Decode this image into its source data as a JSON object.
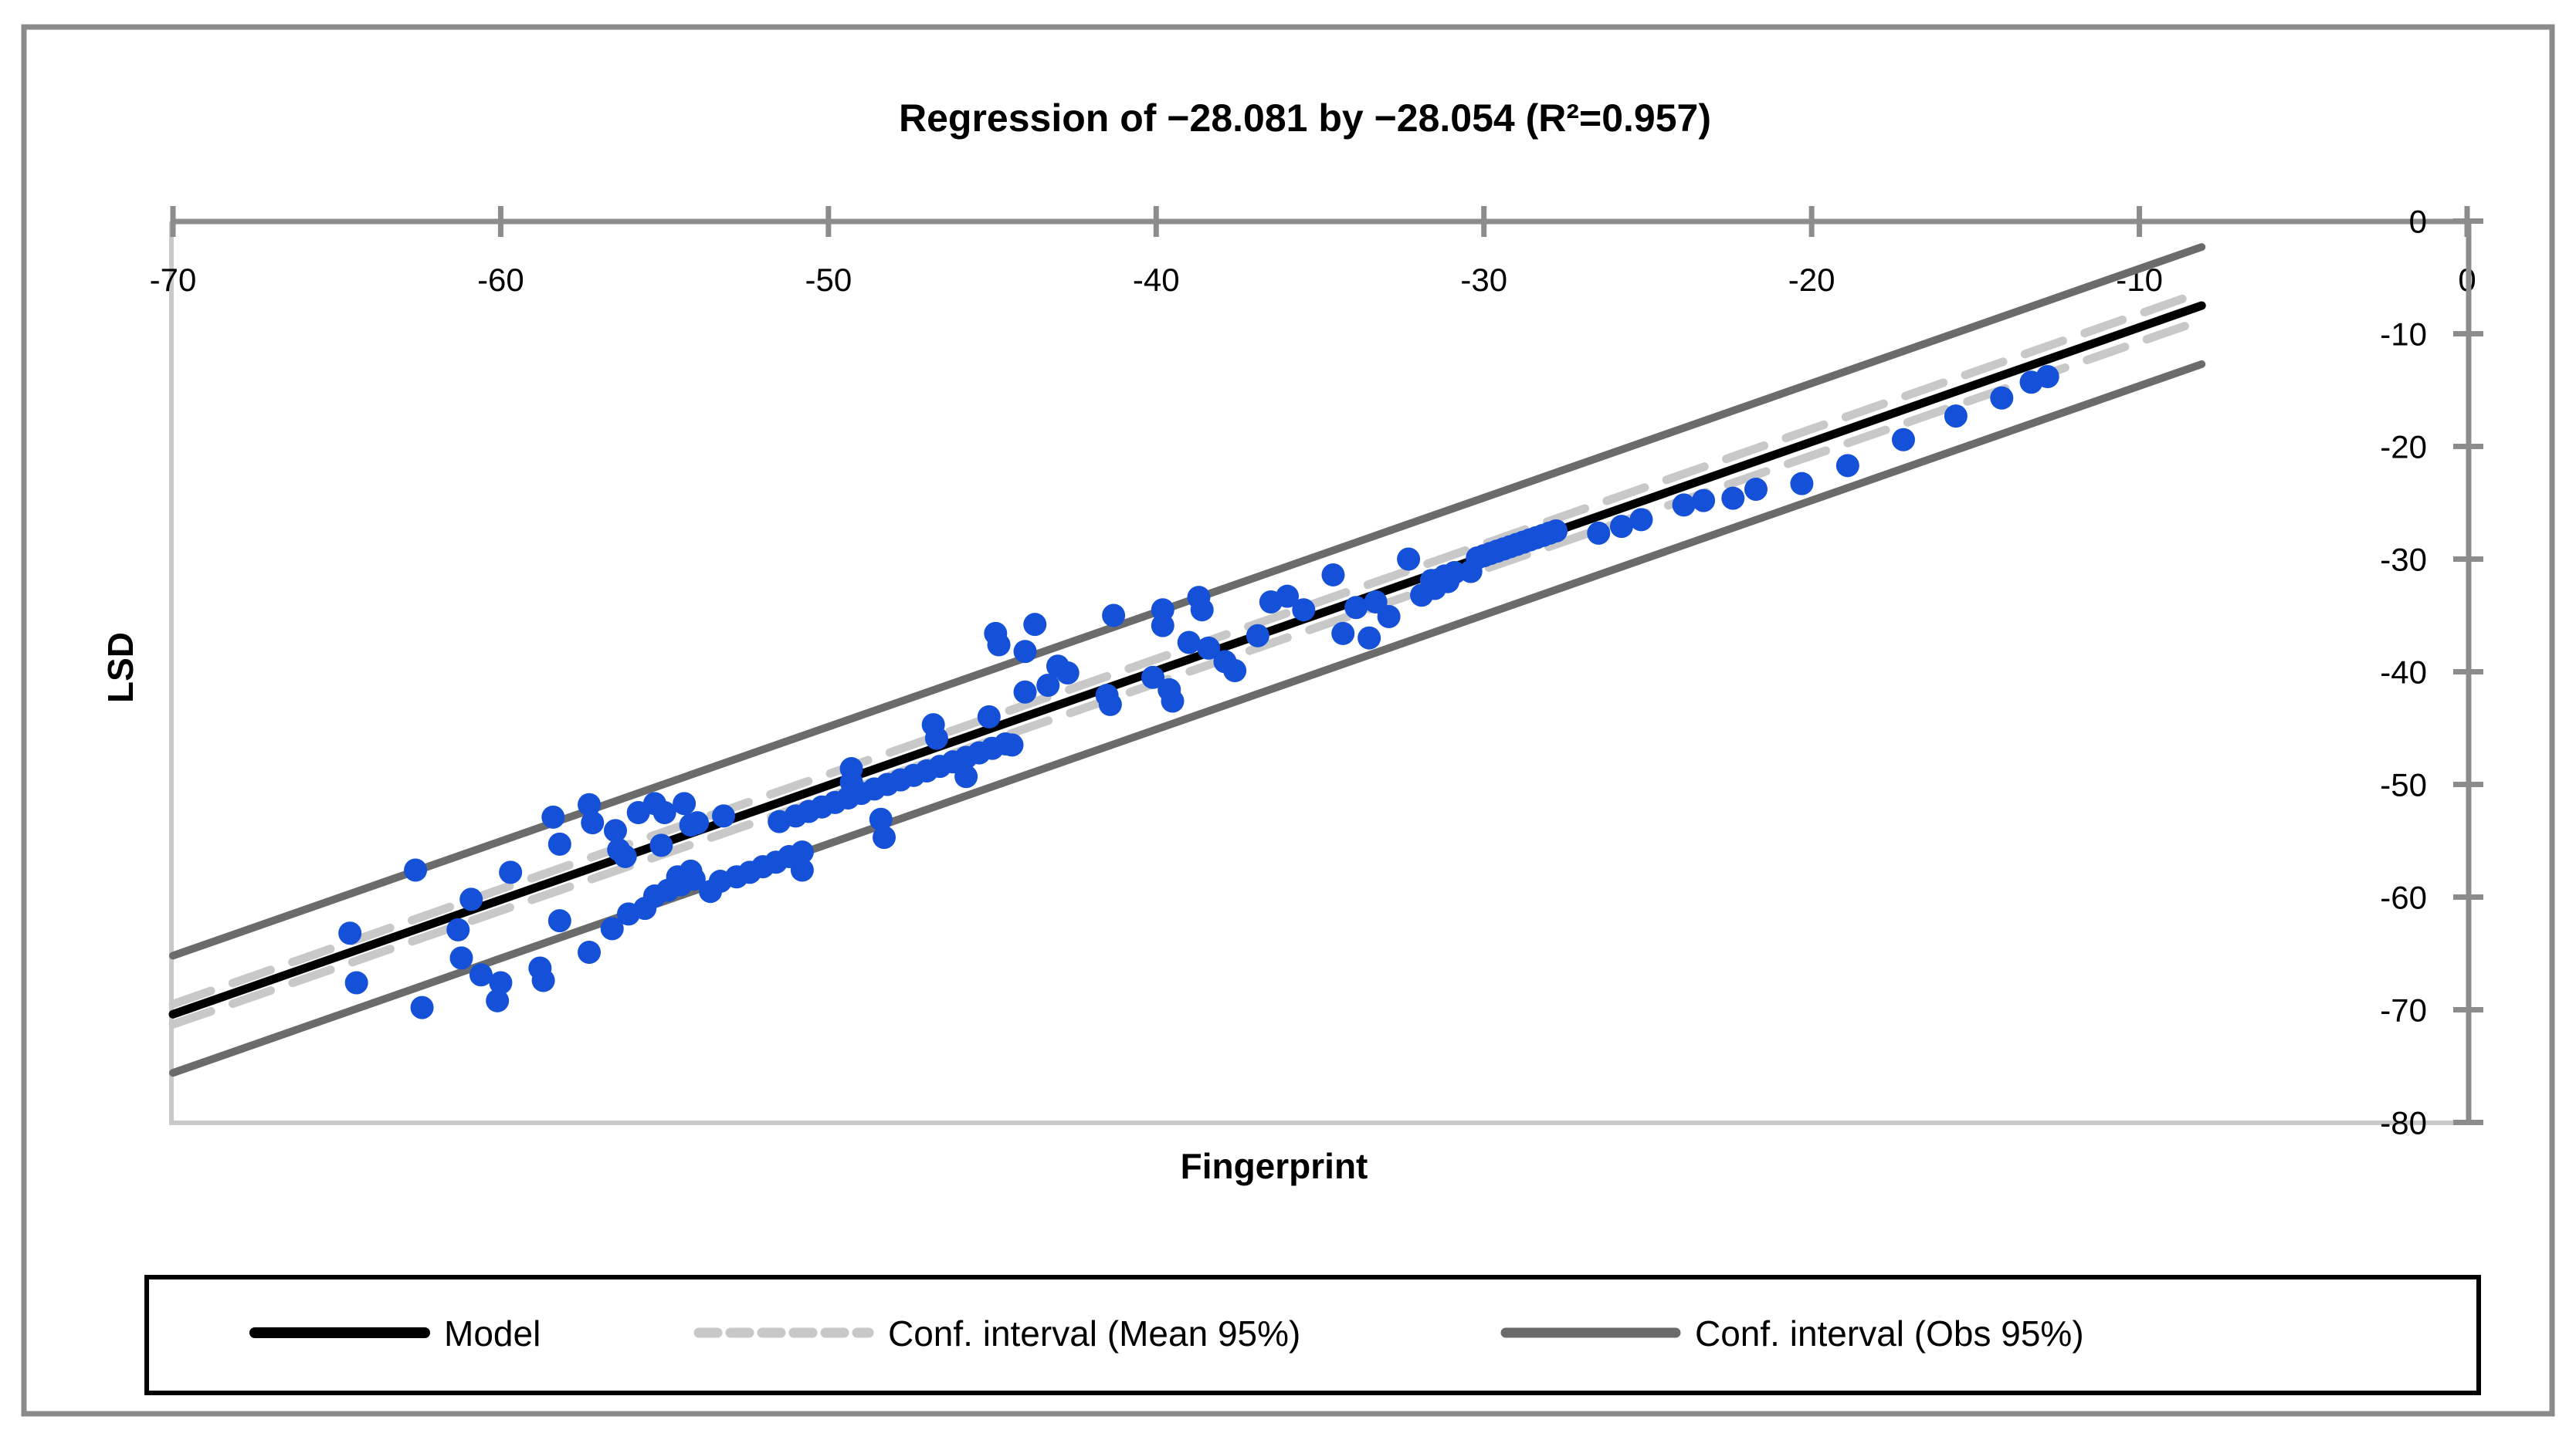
{
  "chart_data": {
    "type": "scatter",
    "title": "Regression of −28.081 by −28.054 (R²=0.957)",
    "xlabel": "Fingerprint",
    "ylabel": "LSD",
    "x_axis": {
      "min": -70,
      "max": 0,
      "position": "top",
      "ticks": [
        -70,
        -60,
        -50,
        -40,
        -30,
        -20,
        -10,
        0
      ]
    },
    "y_axis": {
      "min": -80,
      "max": 0,
      "position": "right",
      "ticks": [
        0,
        -10,
        -20,
        -30,
        -40,
        -50,
        -60,
        -70,
        -80
      ]
    },
    "axis_color": "#8C8C8C",
    "boundary_color": "#C9C9C9",
    "frame_color": "#8A8A8A",
    "grid": "off",
    "legend_position": "bottom",
    "lines": [
      {
        "name": "conf-obs-upper",
        "color": "#6B6B6B",
        "width": 10,
        "dash": "",
        "pts": [
          [
            -70,
            -65.2
          ],
          [
            -8.1,
            -2.3
          ]
        ]
      },
      {
        "name": "conf-obs-lower",
        "color": "#6B6B6B",
        "width": 10,
        "dash": "",
        "pts": [
          [
            -70,
            -75.6
          ],
          [
            -8.1,
            -12.7
          ]
        ]
      },
      {
        "name": "conf-mean-upper",
        "color": "#C8C8C8",
        "width": 11,
        "dash": "52 30",
        "pts": [
          [
            -70,
            -69.5
          ],
          [
            -8.1,
            -6.3
          ]
        ]
      },
      {
        "name": "conf-mean-lower",
        "color": "#C8C8C8",
        "width": 11,
        "dash": "52 30",
        "pts": [
          [
            -70,
            -71.3
          ],
          [
            -8.1,
            -8.8
          ]
        ]
      },
      {
        "name": "model",
        "color": "#000000",
        "width": 11,
        "dash": "",
        "pts": [
          [
            -70,
            -70.4
          ],
          [
            -8.1,
            -7.5
          ]
        ]
      }
    ],
    "scatter": {
      "name": "observations",
      "color": "#1450D8",
      "radius": 15,
      "points": [
        [
          -64.6,
          -63.2
        ],
        [
          -64.4,
          -67.6
        ],
        [
          -62.6,
          -57.6
        ],
        [
          -62.4,
          -69.8
        ],
        [
          -61.3,
          -62.9
        ],
        [
          -61.2,
          -65.4
        ],
        [
          -60.9,
          -60.2
        ],
        [
          -60.6,
          -66.9
        ],
        [
          -60.1,
          -69.2
        ],
        [
          -60.0,
          -67.6
        ],
        [
          -59.7,
          -57.8
        ],
        [
          -58.8,
          -66.3
        ],
        [
          -58.7,
          -67.4
        ],
        [
          -58.4,
          -52.9
        ],
        [
          -58.2,
          -55.3
        ],
        [
          -58.2,
          -62.1
        ],
        [
          -57.3,
          -51.8
        ],
        [
          -57.3,
          -64.9
        ],
        [
          -57.2,
          -53.4
        ],
        [
          -56.6,
          -62.8
        ],
        [
          -56.5,
          -54.1
        ],
        [
          -56.4,
          -55.8
        ],
        [
          -56.2,
          -56.4
        ],
        [
          -56.1,
          -61.5
        ],
        [
          -55.8,
          -52.5
        ],
        [
          -55.6,
          -61.0
        ],
        [
          -55.3,
          -51.7
        ],
        [
          -55.3,
          -59.9
        ],
        [
          -55.1,
          -55.4
        ],
        [
          -55.0,
          -52.5
        ],
        [
          -54.9,
          -59.4
        ],
        [
          -54.6,
          -58.2
        ],
        [
          -54.5,
          -58.9
        ],
        [
          -54.4,
          -51.7
        ],
        [
          -54.2,
          -53.6
        ],
        [
          -54.2,
          -57.7
        ],
        [
          -54.1,
          -58.4
        ],
        [
          -54.0,
          -53.4
        ],
        [
          -53.6,
          -59.5
        ],
        [
          -53.3,
          -58.6
        ],
        [
          -53.2,
          -52.8
        ],
        [
          -52.8,
          -58.2
        ],
        [
          -52.4,
          -57.8
        ],
        [
          -52.0,
          -57.3
        ],
        [
          -51.6,
          -56.9
        ],
        [
          -51.5,
          -53.3
        ],
        [
          -51.2,
          -56.4
        ],
        [
          -51.0,
          -52.8
        ],
        [
          -50.8,
          -56.0
        ],
        [
          -50.8,
          -57.6
        ],
        [
          -50.6,
          -52.4
        ],
        [
          -50.2,
          -52.0
        ],
        [
          -49.8,
          -51.6
        ],
        [
          -49.4,
          -51.2
        ],
        [
          -49.3,
          -49.8
        ],
        [
          -49.3,
          -48.6
        ],
        [
          -49.0,
          -50.8
        ],
        [
          -48.6,
          -50.4
        ],
        [
          -48.4,
          -53.1
        ],
        [
          -48.3,
          -54.7
        ],
        [
          -48.2,
          -50.0
        ],
        [
          -47.8,
          -49.6
        ],
        [
          -47.4,
          -49.2
        ],
        [
          -47.0,
          -48.8
        ],
        [
          -46.8,
          -44.7
        ],
        [
          -46.7,
          -45.9
        ],
        [
          -46.6,
          -48.4
        ],
        [
          -46.2,
          -48.0
        ],
        [
          -45.8,
          -47.6
        ],
        [
          -45.8,
          -49.3
        ],
        [
          -45.4,
          -47.2
        ],
        [
          -45.1,
          -44.0
        ],
        [
          -45.0,
          -46.8
        ],
        [
          -44.6,
          -46.4
        ],
        [
          -44.9,
          -36.6
        ],
        [
          -44.8,
          -37.6
        ],
        [
          -44.4,
          -46.5
        ],
        [
          -44.0,
          -38.2
        ],
        [
          -44.0,
          -41.8
        ],
        [
          -43.7,
          -35.8
        ],
        [
          -43.3,
          -41.2
        ],
        [
          -43.0,
          -39.5
        ],
        [
          -42.7,
          -40.1
        ],
        [
          -41.5,
          -42.1
        ],
        [
          -41.4,
          -42.9
        ],
        [
          -41.3,
          -35.0
        ],
        [
          -40.1,
          -40.5
        ],
        [
          -39.8,
          -34.5
        ],
        [
          -39.8,
          -35.9
        ],
        [
          -39.6,
          -41.6
        ],
        [
          -39.5,
          -42.6
        ],
        [
          -39.0,
          -37.4
        ],
        [
          -38.7,
          -33.4
        ],
        [
          -38.6,
          -34.5
        ],
        [
          -38.4,
          -37.9
        ],
        [
          -37.9,
          -39.1
        ],
        [
          -37.6,
          -39.9
        ],
        [
          -36.9,
          -36.8
        ],
        [
          -36.5,
          -33.8
        ],
        [
          -36.0,
          -33.3
        ],
        [
          -35.5,
          -34.5
        ],
        [
          -34.6,
          -31.4
        ],
        [
          -34.3,
          -36.6
        ],
        [
          -33.9,
          -34.3
        ],
        [
          -33.5,
          -37.0
        ],
        [
          -33.3,
          -33.8
        ],
        [
          -32.9,
          -35.1
        ],
        [
          -32.3,
          -30.0
        ],
        [
          -31.9,
          -33.2
        ],
        [
          -31.6,
          -31.9
        ],
        [
          -31.5,
          -32.6
        ],
        [
          -31.2,
          -31.5
        ],
        [
          -31.1,
          -32.0
        ],
        [
          -30.9,
          -31.2
        ],
        [
          -30.4,
          -31.1
        ],
        [
          -30.2,
          -29.9
        ],
        [
          -30.0,
          -29.7
        ],
        [
          -29.8,
          -29.5
        ],
        [
          -29.6,
          -29.3
        ],
        [
          -29.4,
          -29.1
        ],
        [
          -29.2,
          -28.9
        ],
        [
          -29.0,
          -28.7
        ],
        [
          -28.8,
          -28.5
        ],
        [
          -28.6,
          -28.3
        ],
        [
          -28.4,
          -28.1
        ],
        [
          -28.2,
          -27.9
        ],
        [
          -28.0,
          -27.7
        ],
        [
          -27.8,
          -27.5
        ],
        [
          -26.5,
          -27.7
        ],
        [
          -25.8,
          -27.1
        ],
        [
          -25.2,
          -26.5
        ],
        [
          -23.9,
          -25.2
        ],
        [
          -23.3,
          -24.8
        ],
        [
          -22.4,
          -24.6
        ],
        [
          -21.7,
          -23.8
        ],
        [
          -20.3,
          -23.3
        ],
        [
          -18.9,
          -21.7
        ],
        [
          -17.2,
          -19.4
        ],
        [
          -15.6,
          -17.3
        ],
        [
          -14.2,
          -15.7
        ],
        [
          -13.3,
          -14.3
        ],
        [
          -12.8,
          -13.8
        ]
      ]
    },
    "legend": {
      "entries": [
        {
          "label": "Model",
          "color": "#000000",
          "style": "solid"
        },
        {
          "label": "Conf. interval (Mean 95%)",
          "color": "#C8C8C8",
          "style": "dashed"
        },
        {
          "label": "Conf. interval (Obs 95%)",
          "color": "#6B6B6B",
          "style": "solid"
        }
      ]
    }
  }
}
